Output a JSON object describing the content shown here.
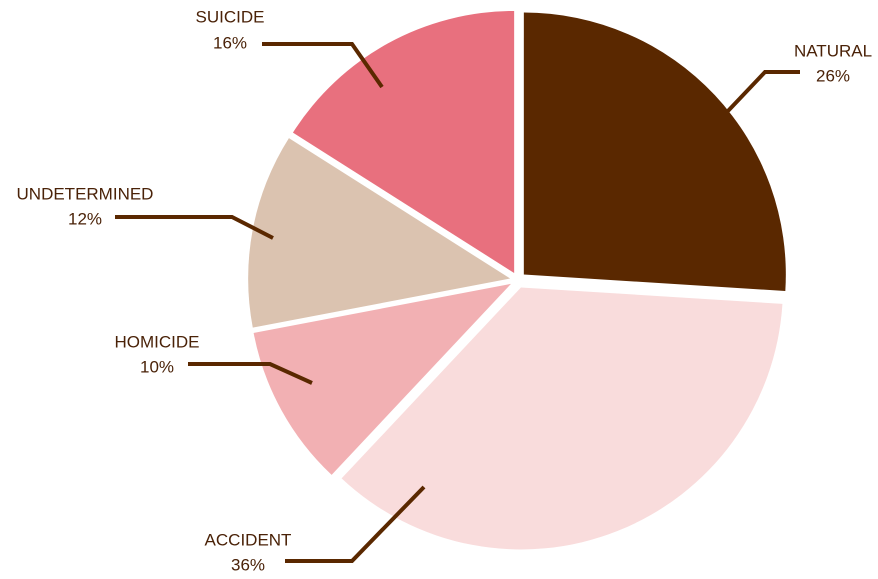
{
  "chart_data": {
    "type": "pie",
    "categories": [
      "NATURAL",
      "ACCIDENT",
      "HOMICIDE",
      "UNDETERMINED",
      "SUICIDE"
    ],
    "values": [
      26,
      36,
      10,
      12,
      16
    ],
    "value_labels": [
      "26%",
      "36%",
      "10%",
      "12%",
      "16%"
    ],
    "colors": [
      "#5a2800",
      "#f9dcdc",
      "#f2b0b3",
      "#dbc3b0",
      "#e8707e"
    ]
  }
}
